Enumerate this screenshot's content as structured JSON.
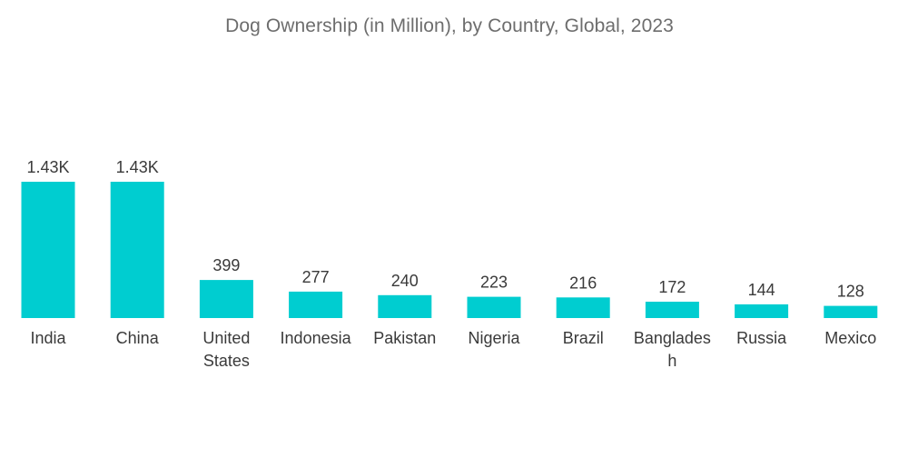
{
  "chart_data": {
    "type": "bar",
    "title": "Dog Ownership (in  Million), by Country, Global, 2023",
    "categories": [
      "India",
      "China",
      "United States",
      "Indonesia",
      "Pakistan",
      "Nigeria",
      "Brazil",
      "Bangladesh",
      "Russia",
      "Mexico"
    ],
    "category_display_lines": [
      [
        "India"
      ],
      [
        "China"
      ],
      [
        "United",
        "States"
      ],
      [
        "Indonesia"
      ],
      [
        "Pakistan"
      ],
      [
        "Nigeria"
      ],
      [
        "Brazil"
      ],
      [
        "Banglades",
        "h"
      ],
      [
        "Russia"
      ],
      [
        "Mexico"
      ]
    ],
    "values": [
      1430,
      1430,
      399,
      277,
      240,
      223,
      216,
      172,
      144,
      128
    ],
    "value_labels": [
      "1.43K",
      "1.43K",
      "399",
      "277",
      "240",
      "223",
      "216",
      "172",
      "144",
      "128"
    ],
    "xlabel": "",
    "ylabel": "",
    "grid": false,
    "legend": "none",
    "bar_color": "#00CDD0"
  }
}
